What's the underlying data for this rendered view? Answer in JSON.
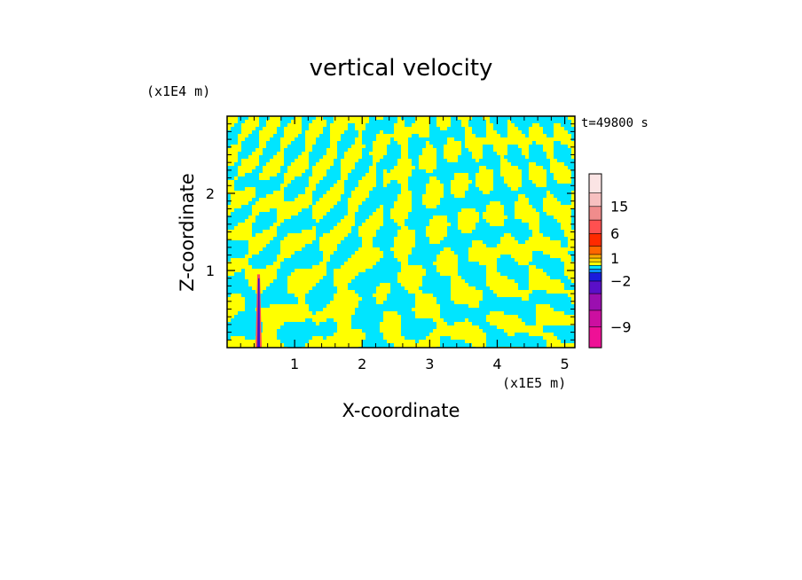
{
  "chart_data": {
    "type": "heatmap",
    "title": "vertical velocity",
    "xlabel": "X-coordinate",
    "ylabel": "Z-coordinate",
    "x_unit": "(x1E5 m)",
    "y_unit": "(x1E4 m)",
    "time_label": "t=49800 s",
    "xlim": [
      0,
      5.15
    ],
    "ylim": [
      0,
      3.0
    ],
    "x_ticks": [
      1,
      2,
      3,
      4,
      5
    ],
    "x_tick_labels": [
      "1",
      "2",
      "3",
      "4",
      "5"
    ],
    "y_ticks": [
      1,
      2
    ],
    "y_tick_labels": [
      "1",
      "2"
    ],
    "colorbar": {
      "levels": [
        -12,
        -9,
        -6,
        -4,
        -2,
        -1,
        -0.5,
        0,
        0.5,
        1,
        2,
        4,
        6,
        10,
        15,
        20,
        25
      ],
      "colors": [
        "#ee1196",
        "#cc0fa0",
        "#9b0fb0",
        "#5a0fc8",
        "#1a1adc",
        "#0a8cff",
        "#00e5ff",
        "#ffff00",
        "#ffd700",
        "#ffaa00",
        "#ff6600",
        "#ff2a00",
        "#ff5050",
        "#f08c8c",
        "#f7c0c0",
        "#fbe4e4"
      ],
      "tick_values": [
        15,
        6,
        1,
        -2,
        -9
      ],
      "tick_labels": [
        "15",
        "6",
        "1",
        "−2",
        "−9"
      ]
    },
    "field_colors": {
      "positive": "#ffff00",
      "negative": "#00e5ff"
    }
  }
}
